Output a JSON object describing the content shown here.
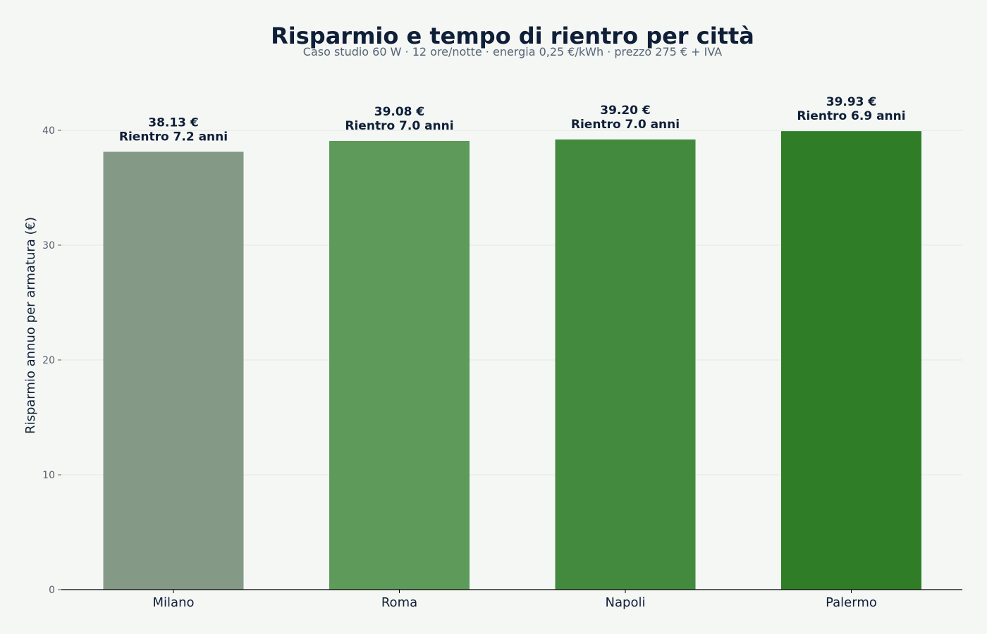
{
  "chart_data": {
    "type": "bar",
    "title": "Risparmio e tempo di rientro per città",
    "subtitle": "Caso studio 60 W · 12 ore/notte · energia 0,25 €/kWh · prezzo 275 € + IVA",
    "xlabel": "",
    "ylabel": "Risparmio annuo per armatura (€)",
    "ylim": [
      0,
      40
    ],
    "yticks": [
      0,
      10,
      20,
      30,
      40
    ],
    "grid": true,
    "categories": [
      "Milano",
      "Roma",
      "Napoli",
      "Palermo"
    ],
    "values": [
      38.13,
      39.08,
      39.2,
      39.93
    ],
    "value_labels": [
      "38.13 €",
      "39.08 €",
      "39.20 €",
      "39.93 €"
    ],
    "payback_labels": [
      "Rientro 7.2 anni",
      "Rientro 7.0 anni",
      "Rientro 7.0 anni",
      "Rientro 6.9 anni"
    ],
    "colors": [
      "#849a86",
      "#5e9a5a",
      "#438a3f",
      "#2f7d27"
    ]
  },
  "style": {
    "title_color": "#0f1f38",
    "subtitle_color": "#556677",
    "axis_text_color": "#555f6a",
    "label_color": "#0f1f38",
    "grid_color": "#e4e8e4",
    "axis_color": "#000000"
  }
}
